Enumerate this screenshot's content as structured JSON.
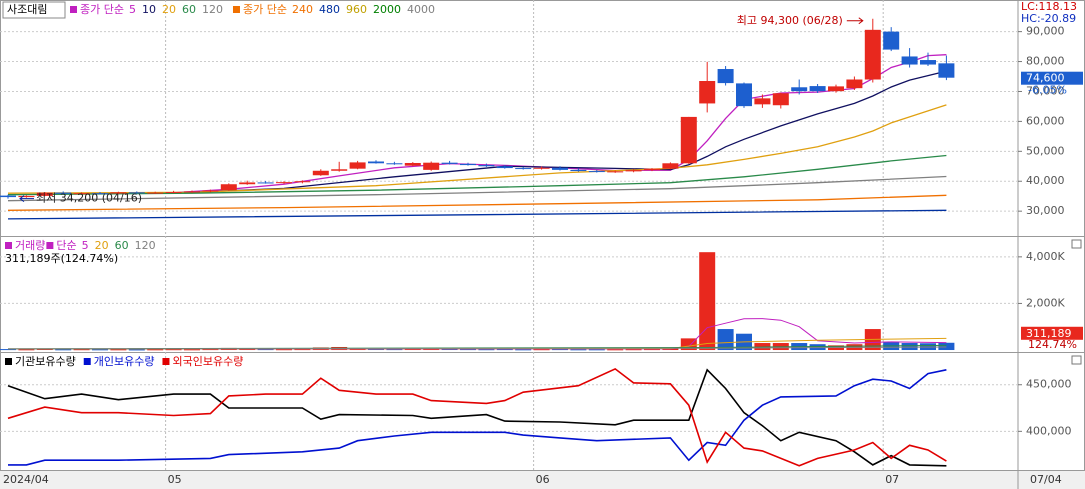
{
  "chart_data": [
    {
      "type": "candlestick",
      "title": "사조대림",
      "categories": [
        "2024/04",
        null,
        null,
        null,
        null,
        null,
        null,
        null,
        null,
        "05",
        null,
        null,
        null,
        null,
        null,
        null,
        null,
        null,
        null,
        null,
        null,
        null,
        null,
        null,
        null,
        null,
        null,
        null,
        null,
        "06",
        null,
        null,
        null,
        null,
        null,
        null,
        null,
        null,
        null,
        null,
        null,
        null,
        null,
        null,
        null,
        null,
        null,
        null,
        "07",
        null,
        null,
        null
      ],
      "open": [
        35200,
        34700,
        35100,
        36200,
        35800,
        36000,
        35900,
        36300,
        36100,
        36200,
        36400,
        36600,
        37000,
        39000,
        39600,
        39400,
        39700,
        42000,
        43500,
        44200,
        46600,
        46000,
        45200,
        43800,
        46200,
        45800,
        45400,
        45000,
        44400,
        44200,
        44500,
        43800,
        43400,
        43100,
        43300,
        43700,
        44200,
        46000,
        66000,
        77500,
        72700,
        65700,
        65400,
        71400,
        71800,
        70100,
        71100,
        74000,
        90000,
        81700,
        80500,
        79400
      ],
      "high": [
        35500,
        35300,
        36400,
        36600,
        36300,
        36400,
        36500,
        36600,
        36500,
        36800,
        36900,
        37200,
        39300,
        40200,
        40100,
        40000,
        40300,
        44000,
        46500,
        46800,
        47000,
        46500,
        46400,
        46600,
        46800,
        46200,
        45900,
        45400,
        44800,
        44900,
        45000,
        44300,
        43800,
        43600,
        44000,
        44400,
        46300,
        61500,
        79900,
        78500,
        73000,
        69000,
        69600,
        74000,
        72500,
        72300,
        75000,
        94300,
        91500,
        84500,
        83000,
        82000
      ],
      "low": [
        34200,
        34500,
        35000,
        35600,
        35500,
        35700,
        35700,
        35900,
        35800,
        36000,
        36100,
        36300,
        36800,
        38800,
        39200,
        39100,
        39300,
        41800,
        43200,
        44000,
        45900,
        45500,
        45000,
        43500,
        45600,
        45200,
        44800,
        44200,
        43900,
        43900,
        43600,
        43200,
        42900,
        42800,
        43000,
        43400,
        44000,
        45800,
        63000,
        72000,
        64500,
        64500,
        64300,
        69000,
        69500,
        69600,
        70500,
        73000,
        83500,
        78000,
        78500,
        73800
      ],
      "close": [
        34700,
        35100,
        36200,
        35800,
        36000,
        35900,
        36300,
        36100,
        36200,
        36400,
        36600,
        36900,
        39000,
        39600,
        39400,
        39700,
        40000,
        43500,
        44000,
        46300,
        46000,
        45900,
        46100,
        46200,
        45800,
        45400,
        45000,
        44400,
        44200,
        44500,
        43800,
        43400,
        43100,
        43300,
        43700,
        44200,
        46000,
        61500,
        73500,
        72800,
        65100,
        67700,
        69400,
        70100,
        70100,
        71700,
        74000,
        90600,
        84000,
        79000,
        79000,
        74600
      ],
      "up_color": "#e8281e",
      "down_color": "#1d5fcf",
      "ylim": [
        21700,
        99900
      ],
      "yticks": [
        {
          "value": 30000,
          "label": "30,000"
        },
        {
          "value": 40000,
          "label": "40,000"
        },
        {
          "value": 50000,
          "label": "50,000"
        },
        {
          "value": 60000,
          "label": "60,000"
        },
        {
          "value": 70000,
          "label": "70,000"
        },
        {
          "value": 80000,
          "label": "80,000"
        },
        {
          "value": 90000,
          "label": "90,000"
        }
      ],
      "grid": true,
      "ma_groups": [
        {
          "label": "종가 단순",
          "series": [
            {
              "name": "5",
              "color": "#c020c0",
              "x": [
                4,
                9,
                12,
                15,
                18,
                21,
                24,
                27,
                30,
                33,
                36,
                37,
                38,
                39,
                40,
                42,
                44,
                46,
                47,
                48,
                49,
                50,
                51
              ],
              "values": [
                35900,
                36200,
                37300,
                39000,
                41800,
                44500,
                45900,
                45300,
                44500,
                43600,
                43700,
                47200,
                53500,
                61000,
                67300,
                69500,
                69800,
                71000,
                74300,
                78000,
                79800,
                82000,
                82300
              ]
            },
            {
              "name": "10",
              "color": "#101060",
              "x": [
                9,
                15,
                21,
                27,
                33,
                36,
                37,
                38,
                39,
                40,
                42,
                44,
                46,
                47,
                48,
                49,
                50,
                51
              ],
              "values": [
                36000,
                37600,
                41500,
                45000,
                44300,
                43900,
                45500,
                48300,
                51500,
                54000,
                58500,
                62500,
                66000,
                68500,
                71500,
                73800,
                75300,
                76800
              ]
            },
            {
              "name": "20",
              "color": "#e0a010",
              "x": [
                0,
                10,
                20,
                30,
                36,
                38,
                40,
                42,
                44,
                46,
                47,
                48,
                49,
                50,
                51
              ],
              "values": [
                36000,
                36300,
                38500,
                42800,
                44300,
                45500,
                47300,
                49300,
                51500,
                54800,
                56800,
                59500,
                61500,
                63500,
                65500
              ]
            },
            {
              "name": "60",
              "color": "#2a8a4a",
              "x": [
                0,
                10,
                20,
                30,
                36,
                40,
                44,
                48,
                51
              ],
              "values": [
                35500,
                36000,
                37000,
                38500,
                39500,
                41500,
                44000,
                46800,
                48600
              ]
            },
            {
              "name": "120",
              "color": "#808080",
              "x": [
                0,
                20,
                36,
                44,
                51
              ],
              "values": [
                33500,
                35500,
                37500,
                39500,
                41600
              ]
            }
          ]
        },
        {
          "label": "종가 단순",
          "series": [
            {
              "name": "240",
              "color": "#f07000",
              "x": [
                0,
                15,
                30,
                44,
                51
              ],
              "values": [
                30300,
                31200,
                32500,
                33800,
                35300
              ]
            },
            {
              "name": "480",
              "color": "#0030a0",
              "x": [
                0,
                25,
                51
              ],
              "values": [
                27400,
                28800,
                30300
              ]
            },
            {
              "name": "960",
              "color": "#c0a000"
            },
            {
              "name": "2000",
              "color": "#008000"
            },
            {
              "name": "4000",
              "color": "#808080"
            }
          ]
        }
      ],
      "high_label": "최고 94,300 (06/28)",
      "low_label": "최저 34,200 (04/16)",
      "lc_label": "LC:118.13",
      "hc_label": "HC:-20.89",
      "last_price_label": "74,600",
      "change_label": "-6.05%"
    },
    {
      "type": "bar",
      "title": "거래량",
      "values": [
        40000,
        30000,
        60000,
        30000,
        35000,
        30000,
        30000,
        25000,
        30000,
        35000,
        30000,
        40000,
        90000,
        60000,
        40000,
        35000,
        40000,
        110000,
        130000,
        80000,
        50000,
        40000,
        50000,
        60000,
        45000,
        40000,
        35000,
        40000,
        30000,
        35000,
        40000,
        30000,
        30000,
        30000,
        35000,
        40000,
        90000,
        500000,
        4200000,
        900000,
        700000,
        300000,
        300000,
        300000,
        250000,
        200000,
        250000,
        900000,
        350000,
        300000,
        290000,
        311189
      ],
      "ylim": [
        -85000,
        4809000
      ],
      "yticks": [
        {
          "value": 2000000,
          "label": "2,000K"
        },
        {
          "value": 4000000,
          "label": "4,000K"
        }
      ],
      "ma_groups": [
        {
          "label": "단순",
          "series": [
            {
              "name": "5",
              "color": "#c020c0",
              "x": [
                0,
                36,
                37,
                38,
                39,
                40,
                41,
                42,
                43,
                44,
                46,
                48,
                51
              ],
              "values": [
                45000,
                50000,
                150000,
                960000,
                1150000,
                1340000,
                1350000,
                1280000,
                1000000,
                400000,
                300000,
                350000,
                320000
              ]
            },
            {
              "name": "20",
              "color": "#e0a010",
              "x": [
                0,
                36,
                38,
                40,
                44,
                48,
                51
              ],
              "values": [
                50000,
                60000,
                280000,
                350000,
                420000,
                470000,
                500000
              ]
            },
            {
              "name": "60",
              "color": "#2a8a4a",
              "x": [
                0,
                38,
                51
              ],
              "values": [
                50000,
                110000,
                200000
              ]
            },
            {
              "name": "120",
              "color": "#808080",
              "x": [
                0,
                38,
                51
              ],
              "values": [
                50000,
                80000,
                130000
              ]
            }
          ]
        }
      ],
      "status_label": "311,189주(124.74%)",
      "last_value_label": "311,189",
      "ratio_label": "124.74%"
    },
    {
      "type": "line",
      "series": [
        {
          "name": "기관보유수량",
          "color": "#000000",
          "x": [
            0,
            2,
            4,
            6,
            9,
            11,
            12,
            16,
            17,
            18,
            22,
            23,
            26,
            27,
            30,
            33,
            34,
            37,
            38,
            39,
            40,
            41,
            42,
            43,
            45,
            46,
            47,
            48,
            49,
            51
          ],
          "values": [
            449000,
            435000,
            440000,
            434000,
            440000,
            440000,
            425000,
            425000,
            413000,
            418000,
            417000,
            414000,
            418000,
            411000,
            410000,
            407000,
            412000,
            412000,
            466000,
            446000,
            420000,
            406000,
            390000,
            399000,
            390000,
            378000,
            364000,
            374000,
            364000,
            363000
          ]
        },
        {
          "name": "개인보유수량",
          "color": "#0010d0",
          "x": [
            0,
            1,
            2,
            6,
            11,
            12,
            16,
            18,
            19,
            21,
            23,
            27,
            28,
            30,
            32,
            36,
            37,
            38,
            39,
            40,
            41,
            42,
            45,
            46,
            47,
            48,
            49,
            50,
            51
          ],
          "values": [
            364000,
            364000,
            369000,
            369000,
            371000,
            375000,
            378000,
            382000,
            390000,
            395000,
            399000,
            399000,
            396000,
            393000,
            390000,
            393000,
            369000,
            388000,
            385000,
            412000,
            428000,
            437000,
            438000,
            449000,
            456000,
            454000,
            446000,
            462000,
            466000
          ]
        },
        {
          "name": "외국인보유수량",
          "color": "#e00000",
          "x": [
            0,
            2,
            4,
            6,
            9,
            11,
            12,
            14,
            16,
            17,
            18,
            20,
            22,
            23,
            26,
            27,
            28,
            31,
            33,
            34,
            36,
            37,
            38,
            39,
            40,
            41,
            43,
            44,
            46,
            47,
            48,
            49,
            50,
            51
          ],
          "values": [
            414000,
            426000,
            420000,
            420000,
            417000,
            419000,
            438000,
            440000,
            440000,
            457000,
            444000,
            440000,
            440000,
            433000,
            430000,
            433000,
            442000,
            449000,
            467000,
            452000,
            451000,
            428000,
            367000,
            399000,
            382000,
            379000,
            363000,
            371000,
            380000,
            388000,
            371000,
            385000,
            380000,
            368000
          ]
        }
      ],
      "ylim": [
        358500,
        483000
      ],
      "yticks": [
        {
          "value": 400000,
          "label": "400,000"
        },
        {
          "value": 450000,
          "label": "450,000"
        }
      ]
    }
  ],
  "x_axis": {
    "end_label": "07/04"
  }
}
